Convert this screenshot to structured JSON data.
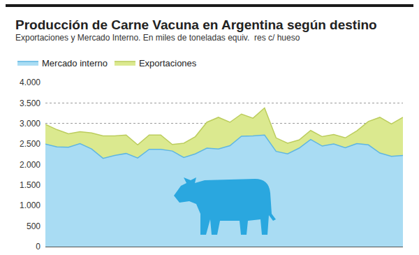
{
  "chart_data": {
    "type": "area",
    "title": "Producción de Carne Vacuna en Argentina según destino",
    "subtitle": "Exportaciones y Mercado Interno. En miles de toneladas equiv.  res c/ hueso",
    "categories": [
      null,
      null,
      null,
      null,
      null,
      null,
      null,
      null,
      null,
      null,
      null,
      null,
      null,
      null,
      null,
      null,
      null,
      null,
      null,
      null,
      null,
      null,
      null,
      null,
      null,
      null,
      null,
      null,
      null,
      null,
      null,
      null
    ],
    "series": [
      {
        "name": "Mercado interno",
        "color": "#a9dcf3",
        "values": [
          2500,
          2430,
          2420,
          2510,
          2380,
          2150,
          2220,
          2270,
          2160,
          2370,
          2370,
          2330,
          2170,
          2260,
          2400,
          2380,
          2460,
          2690,
          2700,
          2720,
          2320,
          2260,
          2400,
          2610,
          2450,
          2500,
          2410,
          2510,
          2480,
          2280,
          2200,
          2220
        ]
      },
      {
        "name": "Exportaciones",
        "color": "#dbe98f",
        "values": [
          480,
          420,
          330,
          290,
          390,
          550,
          480,
          450,
          320,
          350,
          350,
          160,
          350,
          420,
          630,
          770,
          570,
          540,
          430,
          660,
          330,
          260,
          200,
          220,
          230,
          230,
          240,
          310,
          570,
          870,
          790,
          930
        ]
      }
    ],
    "stacked": true,
    "ylim": [
      0,
      4000
    ],
    "yticks": [
      0,
      500,
      {
        "value": 1000,
        "label": "1.000"
      },
      {
        "value": 1500,
        "label": "1.500"
      },
      {
        "value": 2000,
        "label": "2.000"
      },
      {
        "value": 2500,
        "label": "2.500"
      },
      {
        "value": 3000,
        "label": "3.000"
      },
      {
        "value": 3500,
        "label": "3.500"
      },
      {
        "value": 4000,
        "label": "4.000"
      }
    ],
    "grid": true,
    "legend": "top-left",
    "tick_labels": "y"
  }
}
